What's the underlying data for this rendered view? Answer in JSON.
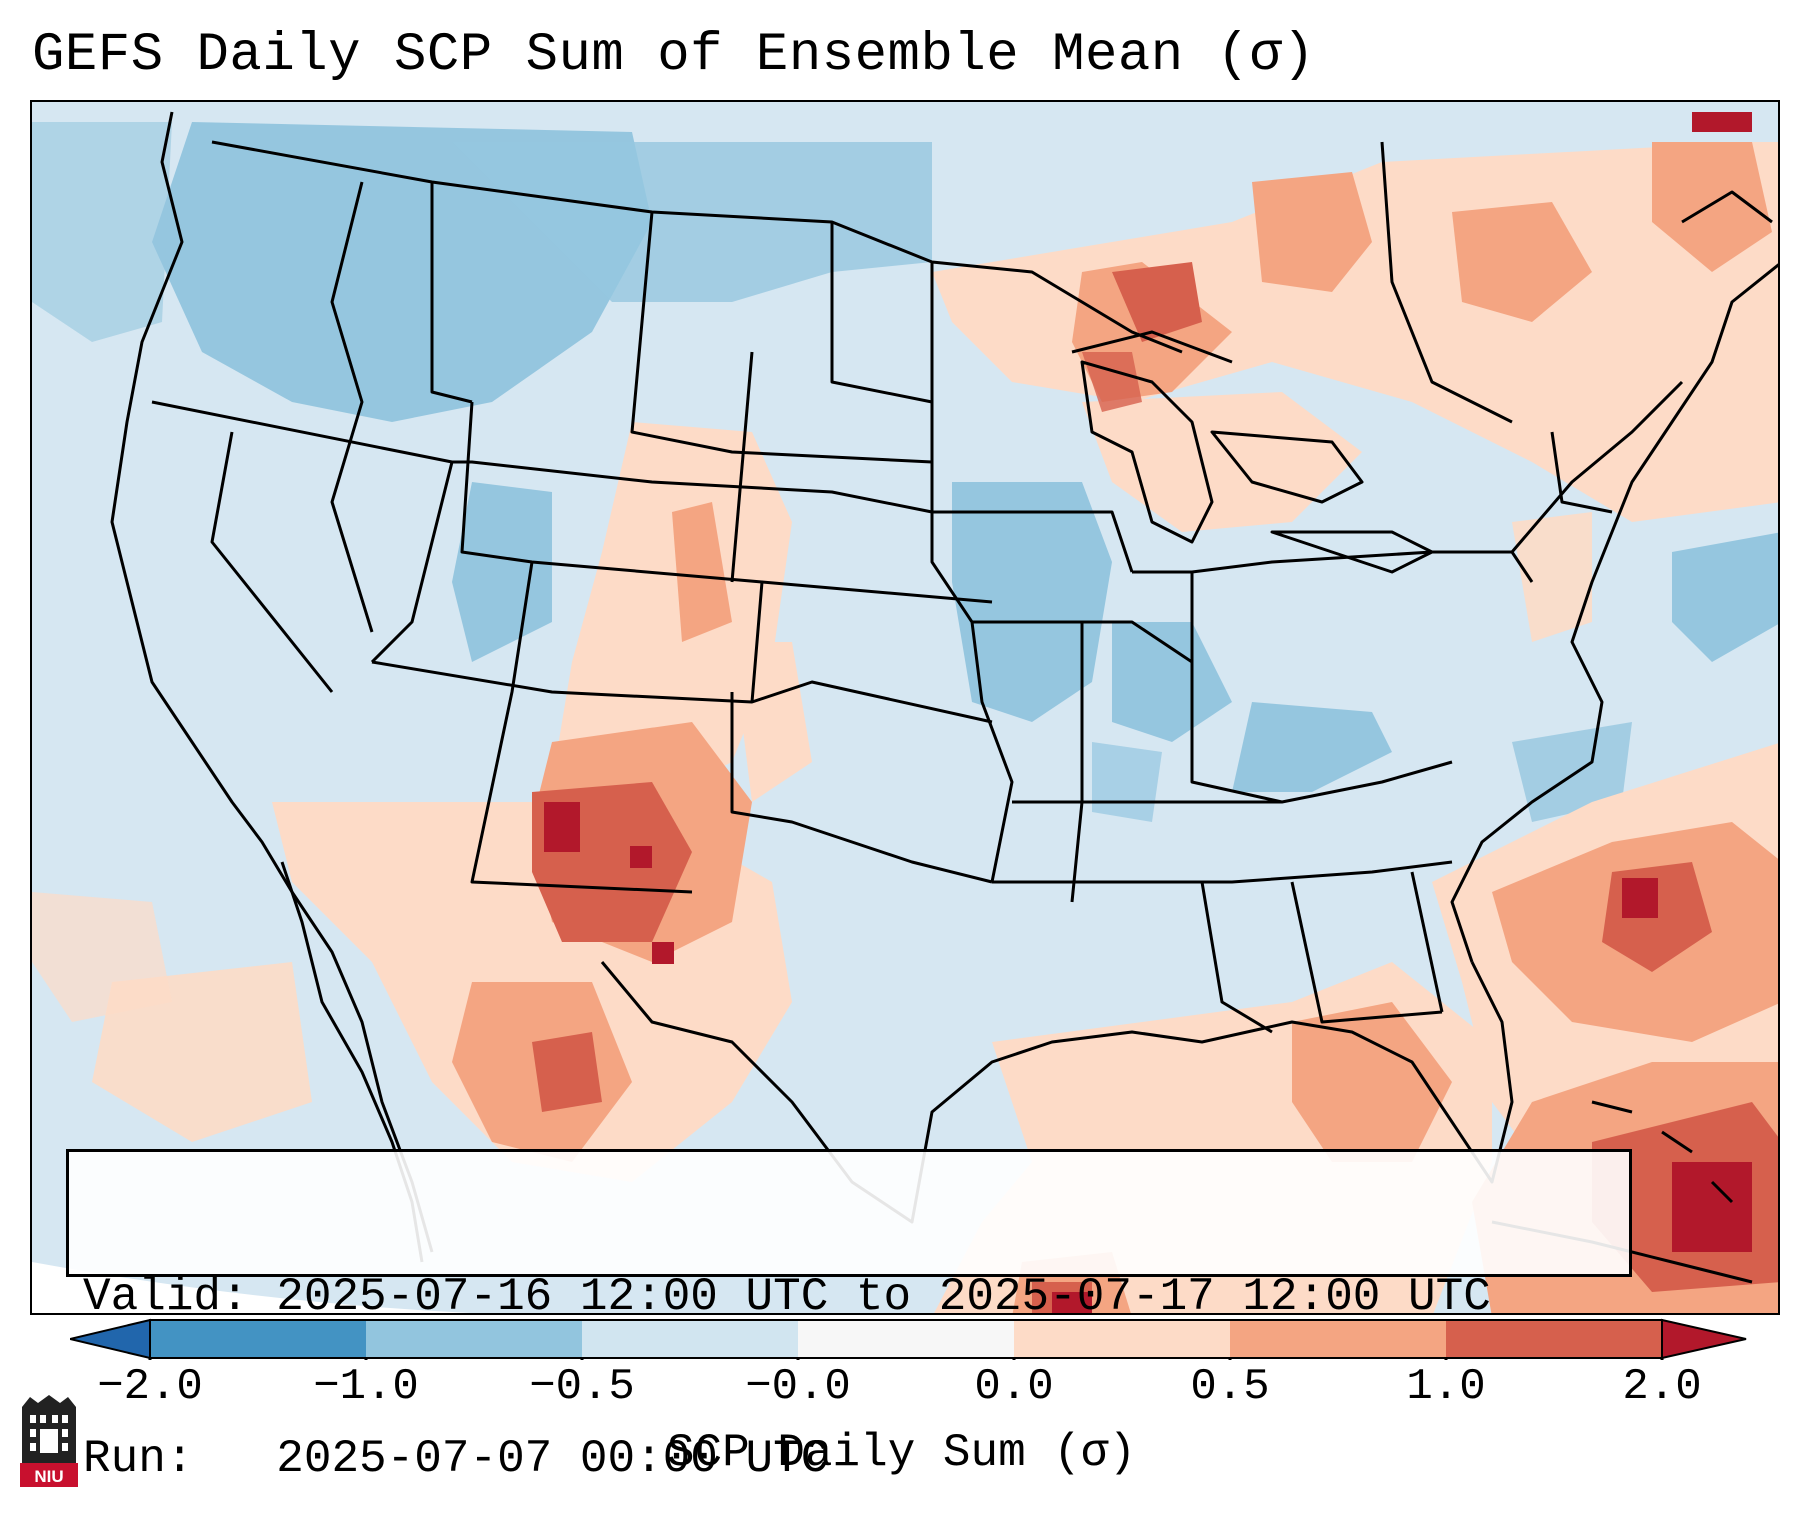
{
  "title": "GEFS Daily SCP Sum of Ensemble Mean (σ)",
  "info": {
    "valid_line": "Valid: 2025-07-16 12:00 UTC to 2025-07-17 12:00 UTC",
    "run_line": "Run:   2025-07-07 00:00 UTC"
  },
  "colorbar": {
    "label": "SCP Daily Sum (σ)",
    "ticks": [
      "−2.0",
      "−1.0",
      "−0.5",
      "−0.0",
      "0.0",
      "0.5",
      "1.0",
      "2.0"
    ],
    "bins": [
      {
        "range": "-2.0 to -1.0",
        "color": "#4393c3"
      },
      {
        "range": "-1.0 to -0.5",
        "color": "#92c5de"
      },
      {
        "range": "-0.5 to -0.0",
        "color": "#d1e5f0"
      },
      {
        "range": "-0.0 to 0.0",
        "color": "#f7f7f7"
      },
      {
        "range": "0.0 to 0.5",
        "color": "#fddbc7"
      },
      {
        "range": "0.5 to 1.0",
        "color": "#f4a582"
      },
      {
        "range": "1.0 to 2.0",
        "color": "#d6604d"
      }
    ],
    "extend_low_color": "#2166ac",
    "extend_high_color": "#b2182b"
  },
  "map_fields": [
    {
      "region": "Pacific Northwest / Northern Rockies",
      "level": "-1.0 to -0.5",
      "color": "#92c5de"
    },
    {
      "region": "Upper Midwest / Iowa / Missouri",
      "level": "-1.0 to -0.5",
      "color": "#92c5de"
    },
    {
      "region": "Ohio Valley / Kentucky",
      "level": "-1.0 to -0.5",
      "color": "#92c5de"
    },
    {
      "region": "Northern Plains / Great Lakes",
      "level": "0.0 to 1.0",
      "color": "#f4a582"
    },
    {
      "region": "New Mexico / Southern Rockies",
      "level": "1.0 to 2.0",
      "color": "#d6604d"
    },
    {
      "region": "Mexico / Gulf of Mexico",
      "level": "0.0 to 1.0",
      "color": "#fddbc7"
    },
    {
      "region": "Western Atlantic",
      "level": "1.0 to 2.0",
      "color": "#d6604d"
    },
    {
      "region": "Caribbean / Bahamas",
      "level": "> 2.0",
      "color": "#b2182b"
    }
  ],
  "logo_text": "NIU"
}
